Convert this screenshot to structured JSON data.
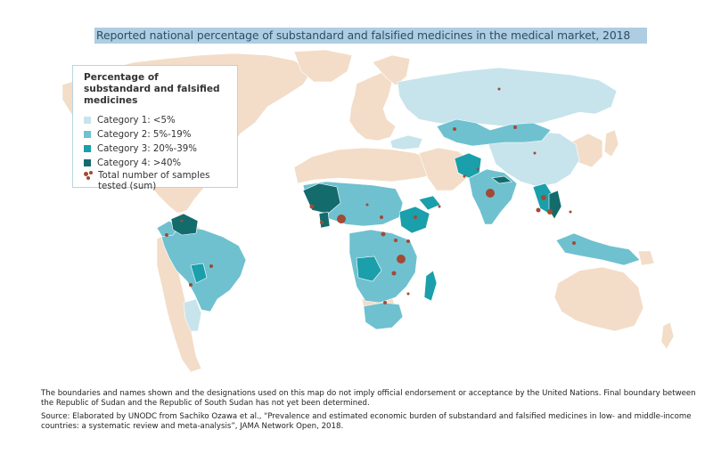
{
  "title": "Reported national percentage of substandard and falsified medicines in the medical market, 2018",
  "legend": {
    "title": "Percentage of substandard and falsified medicines",
    "categories": [
      {
        "label": "Category 1: <5%",
        "color": "#c7e4ec"
      },
      {
        "label": "Category 2: 5%-19%",
        "color": "#6fc1d0"
      },
      {
        "label": "Category 3: 20%-39%",
        "color": "#1a9fab"
      },
      {
        "label": "Category 4: >40%",
        "color": "#136b6c"
      }
    ],
    "samples_label": "Total number of samples tested (sum)",
    "no_data_color": "#f3ddc8",
    "dot_color": "#a24a34"
  },
  "notes": {
    "disclaimer": "The boundaries and names shown and the designations used on this map do not imply official endorsement or acceptance by the United Nations. Final boundary between the Republic of Sudan and the Republic of South Sudan has not yet been determined.",
    "source": "Source: Elaborated by UNODC from Sachiko Ozawa et al., “Prevalence and estimated economic burden of substandard and falsified medicines in low- and middle-income countries: a systematic review and meta-analysis”, JAMA Network Open, 2018."
  }
}
